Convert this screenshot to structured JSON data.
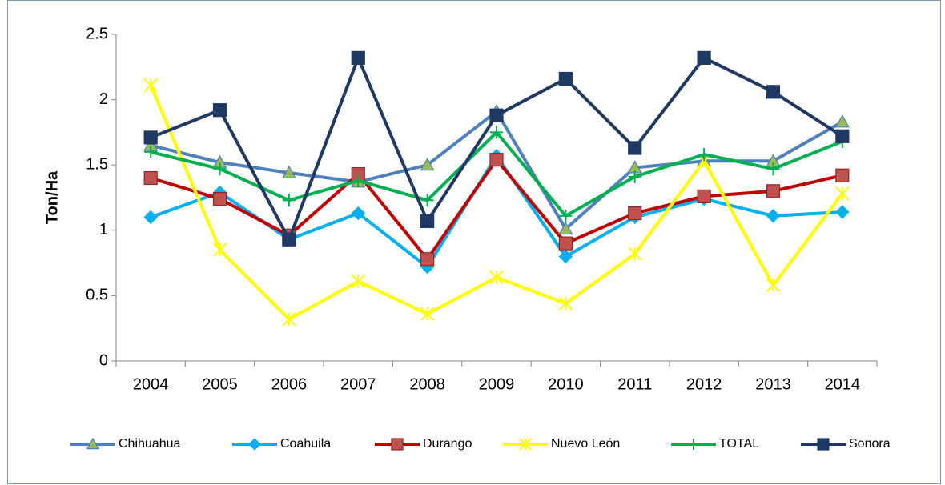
{
  "chart_data": {
    "type": "line",
    "y_label": "Ton/Ha",
    "categories": [
      "2004",
      "2005",
      "2006",
      "2007",
      "2008",
      "2009",
      "2010",
      "2011",
      "2012",
      "2013",
      "2014"
    ],
    "ylim": [
      0,
      2.5
    ],
    "yticks": [
      0,
      0.5,
      1,
      1.5,
      2,
      2.5
    ],
    "grid": false,
    "legend": "bottom",
    "series": [
      {
        "name": "Chihuahua",
        "color": "#4f81bd",
        "marker": "triangle",
        "marker_color": "#9bbb59",
        "values": [
          1.65,
          1.52,
          1.44,
          1.37,
          1.5,
          1.91,
          1.01,
          1.48,
          1.53,
          1.53,
          1.83
        ]
      },
      {
        "name": "Coahuila",
        "color": "#00b0f0",
        "marker": "diamond",
        "marker_color": "#00b0f0",
        "values": [
          1.1,
          1.29,
          0.93,
          1.13,
          0.72,
          1.57,
          0.8,
          1.1,
          1.24,
          1.11,
          1.14
        ]
      },
      {
        "name": "Durango",
        "color": "#c00000",
        "marker": "square",
        "marker_color": "#c0504d",
        "values": [
          1.4,
          1.24,
          0.96,
          1.43,
          0.78,
          1.54,
          0.9,
          1.13,
          1.26,
          1.3,
          1.42
        ]
      },
      {
        "name": "Nuevo León",
        "color": "#ffff00",
        "marker": "x",
        "marker_color": "#ffff00",
        "values": [
          2.11,
          0.85,
          0.32,
          0.61,
          0.36,
          0.64,
          0.44,
          0.82,
          1.53,
          0.58,
          1.28
        ]
      },
      {
        "name": "TOTAL",
        "color": "#00b050",
        "marker": "plus",
        "marker_color": "#00b050",
        "values": [
          1.6,
          1.47,
          1.23,
          1.38,
          1.23,
          1.75,
          1.11,
          1.41,
          1.58,
          1.47,
          1.68
        ]
      },
      {
        "name": "Sonora",
        "color": "#1f3864",
        "marker": "square",
        "marker_color": "#1f3864",
        "values": [
          1.71,
          1.92,
          0.93,
          2.32,
          1.07,
          1.88,
          2.16,
          1.63,
          2.32,
          2.06,
          1.72
        ]
      }
    ]
  }
}
